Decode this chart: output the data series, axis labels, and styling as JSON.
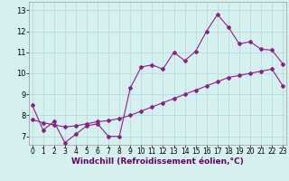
{
  "x": [
    0,
    1,
    2,
    3,
    4,
    5,
    6,
    7,
    8,
    9,
    10,
    11,
    12,
    13,
    14,
    15,
    16,
    17,
    18,
    19,
    20,
    21,
    22,
    23
  ],
  "y_zigzag": [
    8.5,
    7.3,
    7.7,
    6.7,
    7.1,
    7.5,
    7.6,
    7.0,
    7.0,
    9.3,
    10.3,
    10.4,
    10.2,
    11.0,
    10.6,
    11.05,
    12.0,
    12.8,
    12.2,
    11.4,
    11.5,
    11.15,
    11.1,
    10.45
  ],
  "y_linear": [
    7.8,
    7.65,
    7.55,
    7.45,
    7.5,
    7.6,
    7.7,
    7.75,
    7.85,
    8.0,
    8.2,
    8.4,
    8.6,
    8.8,
    9.0,
    9.2,
    9.4,
    9.6,
    9.8,
    9.9,
    10.0,
    10.1,
    10.2,
    9.4
  ],
  "line_color": "#882288",
  "bg_color": "#d6f0f0",
  "grid_color": "#b0d8d8",
  "xlabel": "Windchill (Refroidissement éolien,°C)",
  "xlabel_color": "#660066",
  "xlabel_fontsize": 6.5,
  "ytick_labels": [
    "7",
    "8",
    "9",
    "10",
    "11",
    "12",
    "13"
  ],
  "ytick_vals": [
    7,
    8,
    9,
    10,
    11,
    12,
    13
  ],
  "xtick_vals": [
    0,
    1,
    2,
    3,
    4,
    5,
    6,
    7,
    8,
    9,
    10,
    11,
    12,
    13,
    14,
    15,
    16,
    17,
    18,
    19,
    20,
    21,
    22,
    23
  ],
  "xlim": [
    -0.3,
    23.3
  ],
  "ylim": [
    6.6,
    13.4
  ],
  "tick_fontsize": 5.5,
  "ytick_fontsize": 6.0
}
